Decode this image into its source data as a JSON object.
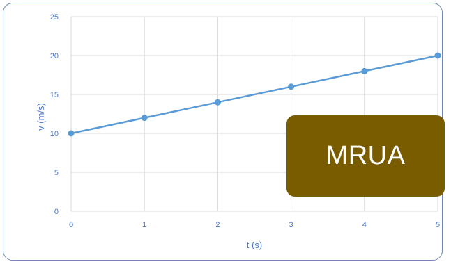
{
  "badge": {
    "text": "MRUA",
    "color": "#7a5c00"
  },
  "colors": {
    "series": "#5b9bd5",
    "grid": "#d9d9d9",
    "frame": "#6f89b3",
    "tick_text": "#4a76c9"
  },
  "chart_data": {
    "type": "line",
    "title": "",
    "xlabel": "t (s)",
    "ylabel": "v (m/s)",
    "xlim": [
      0,
      5
    ],
    "ylim": [
      0,
      25
    ],
    "x_ticks": [
      0,
      1,
      2,
      3,
      4,
      5
    ],
    "y_ticks": [
      0,
      5,
      10,
      15,
      20,
      25
    ],
    "grid": true,
    "legend": "none",
    "series": [
      {
        "x": [
          0,
          1,
          2,
          3,
          4,
          5
        ],
        "values": [
          10,
          12,
          14,
          16,
          18,
          20
        ],
        "markers": true
      }
    ]
  }
}
